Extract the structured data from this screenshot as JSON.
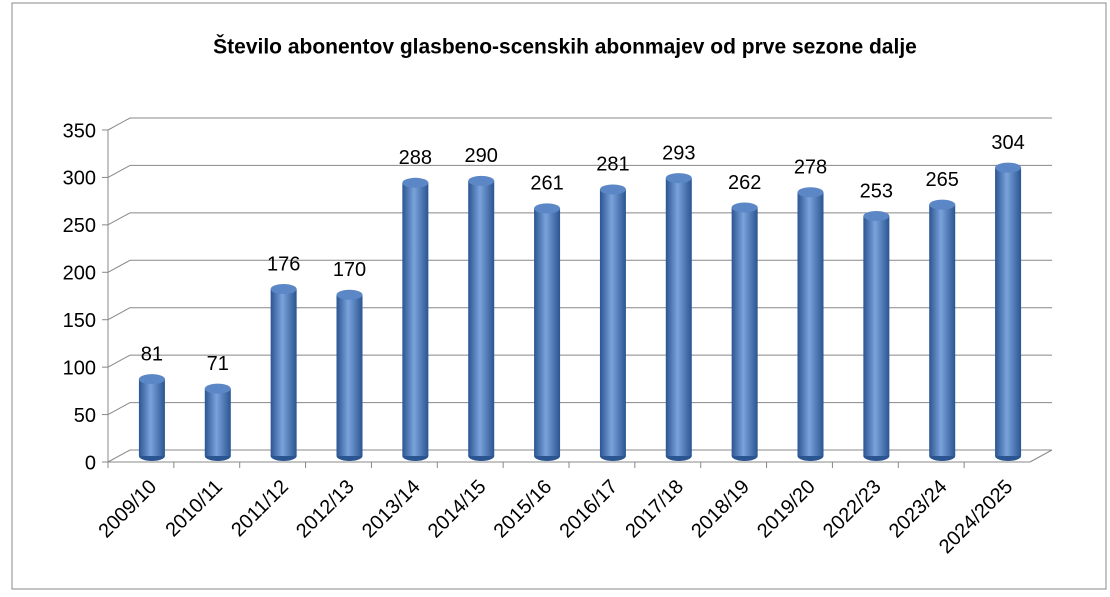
{
  "chart_data": {
    "type": "bar",
    "title": "Število abonentov glasbeno-scenskih abonmajev od prve sezone dalje",
    "categories": [
      "2009/10",
      "2010/11",
      "2011/12",
      "2012/13",
      "2013/14",
      "2014/15",
      "2015/16",
      "2016/17",
      "2017/18",
      "2018/19",
      "2019/20",
      "2022/23",
      "2023/24",
      "2024/2025"
    ],
    "values": [
      81,
      71,
      176,
      170,
      288,
      290,
      261,
      281,
      293,
      262,
      278,
      253,
      265,
      304
    ],
    "color": "#4f81bd",
    "ylim": [
      0,
      350
    ],
    "yticks": [
      0,
      50,
      100,
      150,
      200,
      250,
      300,
      350
    ],
    "grid": true
  }
}
